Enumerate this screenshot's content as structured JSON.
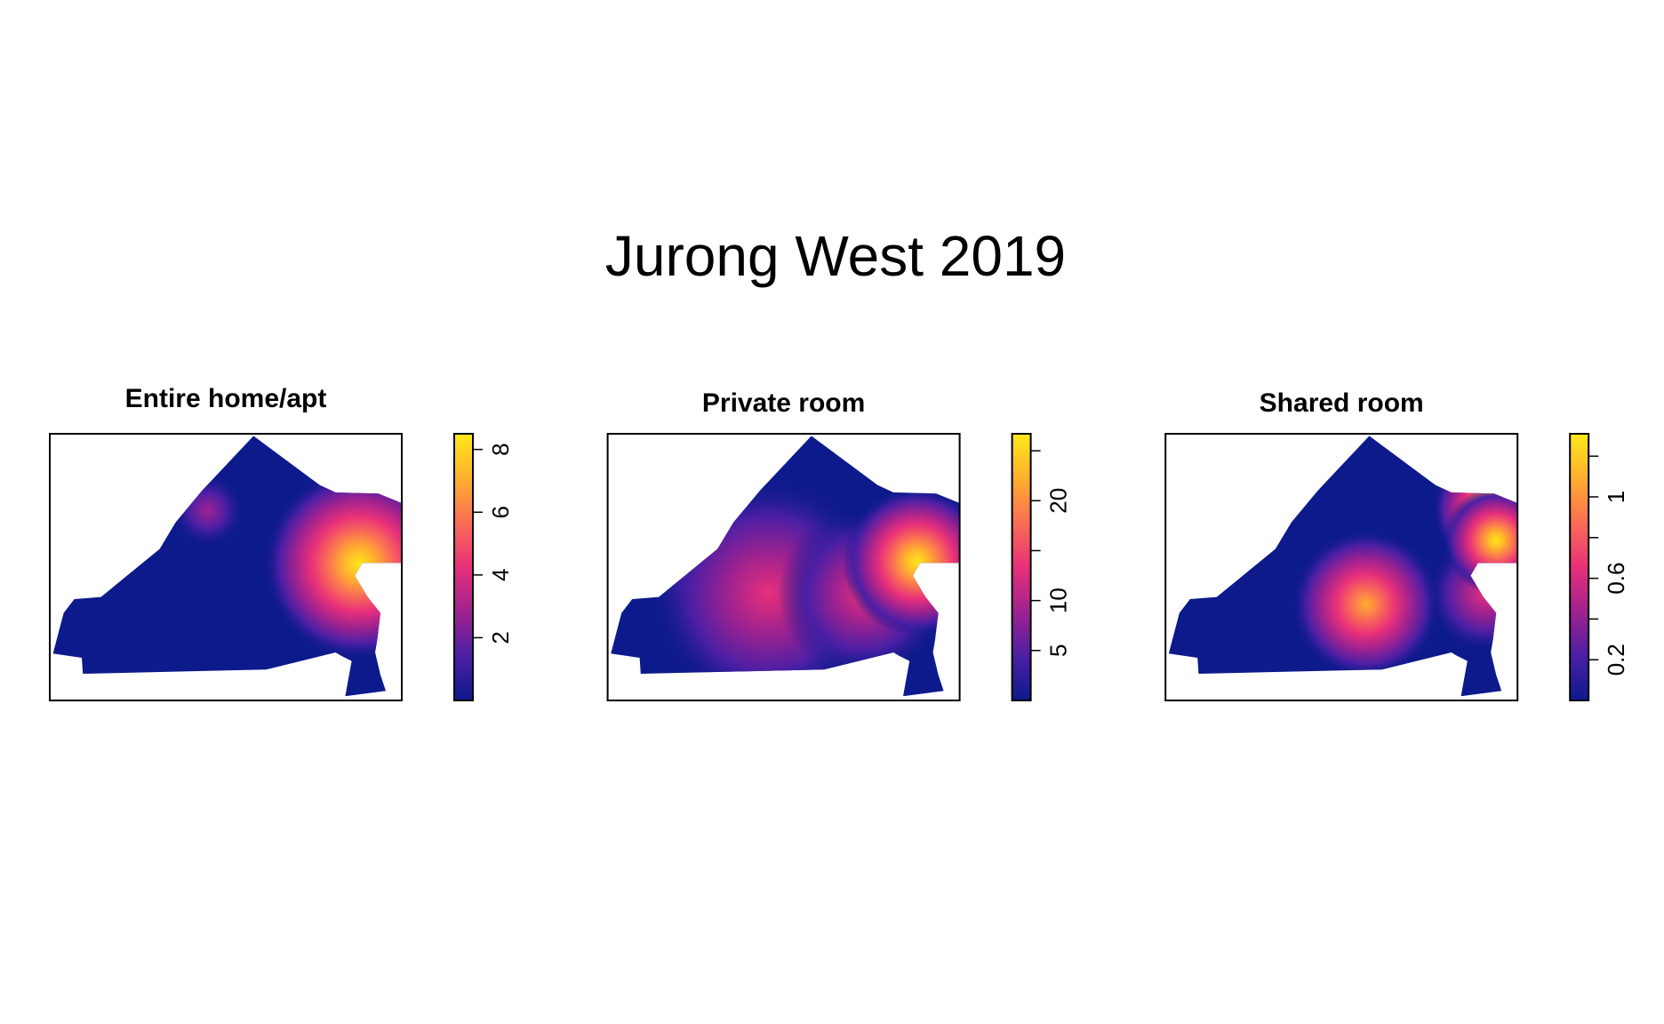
{
  "title": "Jurong West 2019",
  "chart_data": [
    {
      "type": "heatmap",
      "title": "Entire home/apt",
      "zlim": [
        0,
        8.5
      ],
      "zticks": [
        2,
        4,
        6,
        8
      ],
      "colors": [
        "#0d1a8c",
        "#4b1fa5",
        "#a0228f",
        "#e8307a",
        "#fa6d55",
        "#ffb02e",
        "#ffe81a"
      ]
    },
    {
      "type": "heatmap",
      "title": "Private room",
      "zlim": [
        0,
        26.7
      ],
      "zticks": [
        5,
        10,
        20
      ],
      "zminorticks": [
        15,
        25
      ],
      "colors": [
        "#0d1a8c",
        "#4b1fa5",
        "#a0228f",
        "#e8307a",
        "#fa6d55",
        "#ffb02e",
        "#ffe81a"
      ]
    },
    {
      "type": "heatmap",
      "title": "Shared room",
      "zlim": [
        0,
        1.31
      ],
      "zticks": [
        0.2,
        0.6,
        1
      ],
      "zminorticks": [
        0.4,
        0.8,
        1.2
      ],
      "colors": [
        "#0d1a8c",
        "#4b1fa5",
        "#a0228f",
        "#e8307a",
        "#fa6d55",
        "#ffb02e",
        "#ffe81a"
      ]
    }
  ]
}
